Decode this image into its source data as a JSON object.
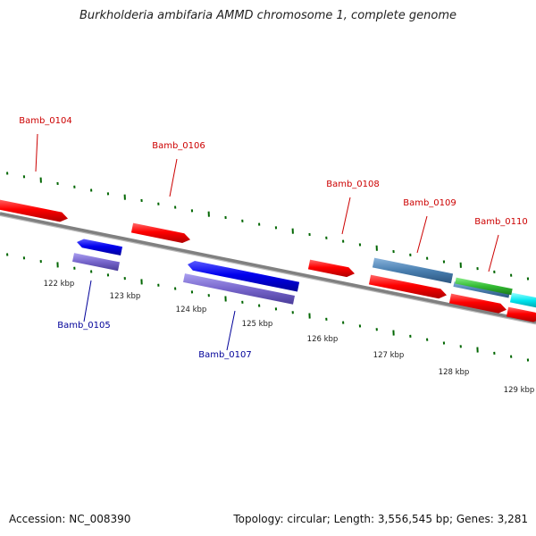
{
  "title": "Burkholderia ambifaria AMMD chromosome 1, complete genome",
  "footer": {
    "accession": "Accession: NC_008390",
    "summary": "Topology: circular; Length: 3,556,545 bp; Genes: 3,281"
  },
  "ticks": [
    "122 kbp",
    "123 kbp",
    "124 kbp",
    "125 kbp",
    "126 kbp",
    "127 kbp",
    "128 kbp",
    "129 kbp"
  ],
  "genes": [
    {
      "id": "Bamb_0104",
      "strand": "+",
      "color": "#ff0000"
    },
    {
      "id": "Bamb_0105",
      "strand": "-",
      "color": "#0000ee"
    },
    {
      "id": "Bamb_0106",
      "strand": "+",
      "color": "#ff0000"
    },
    {
      "id": "Bamb_0107",
      "strand": "-",
      "color": "#0000ee"
    },
    {
      "id": "Bamb_0108",
      "strand": "+",
      "color": "#ff0000"
    },
    {
      "id": "Bamb_0109",
      "strand": "+",
      "color": "#ff0000"
    },
    {
      "id": "Bamb_0110",
      "strand": "+",
      "color": "#ff0000"
    }
  ],
  "colors": {
    "plus_label": "#cc0000",
    "minus_label": "#000099",
    "backbone": "#808080",
    "tick": "#006600",
    "cds_plus": "#ff0000",
    "cds_minus": "#0000ee",
    "cds_minus_shadow": "#7766cc",
    "feature_steelblue": "#4a7fb0",
    "feature_green": "#33bb33",
    "feature_cyan": "#00e5ee"
  }
}
